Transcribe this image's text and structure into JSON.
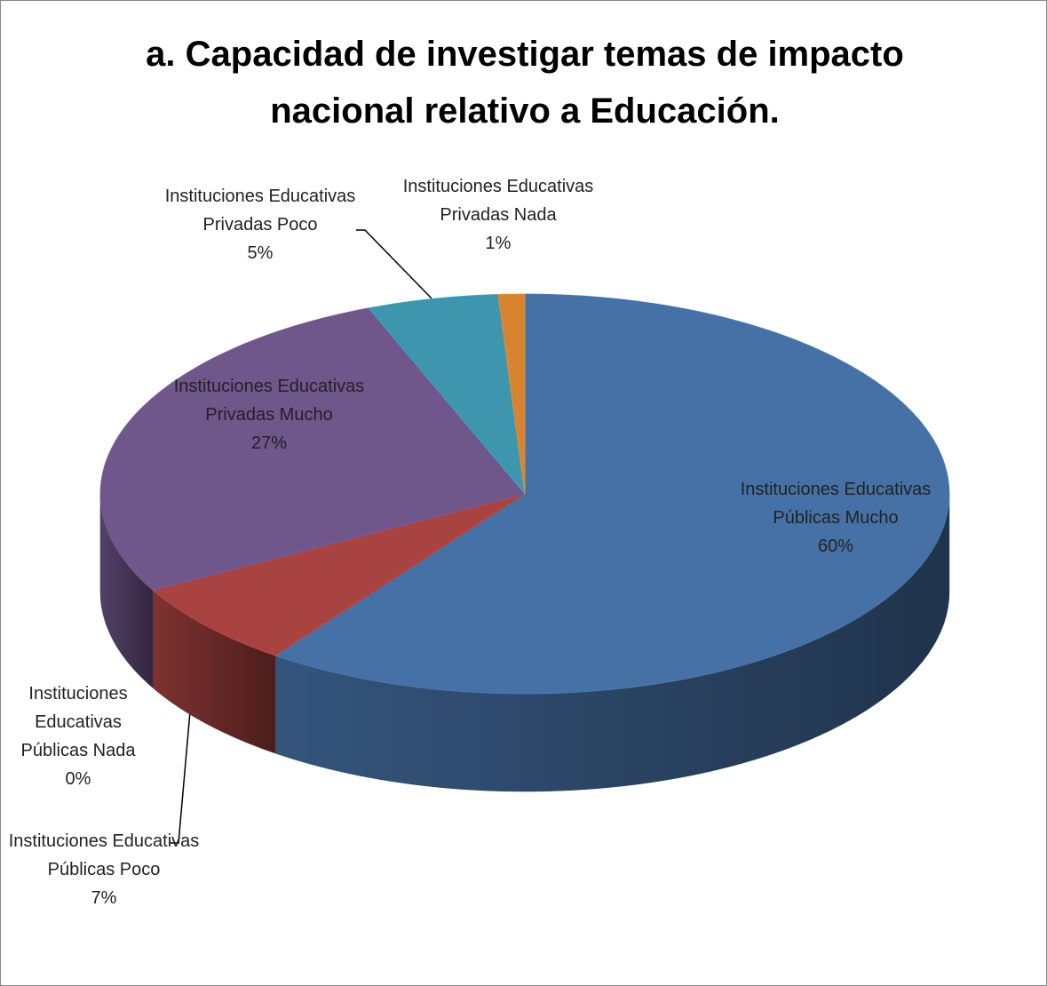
{
  "chart_data": {
    "type": "pie",
    "title": "a. Capacidad de investigar temas de impacto\nnacional relativo a Educación.",
    "categories": [
      "Instituciones Educativas Públicas Mucho",
      "Instituciones Educativas Públicas Poco",
      "Instituciones Educativas Públicas Nada",
      "Instituciones Educativas Privadas Mucho",
      "Instituciones Educativas Privadas Poco",
      "Instituciones Educativas Privadas Nada"
    ],
    "values": [
      60,
      7,
      0,
      27,
      5,
      1
    ],
    "value_labels": [
      "60%",
      "7%",
      "0%",
      "27%",
      "5%",
      "1%"
    ],
    "colors": [
      "#4671a6",
      "#a94341",
      "#8aa64a",
      "#6f568b",
      "#3e96ae",
      "#d8832f"
    ]
  }
}
